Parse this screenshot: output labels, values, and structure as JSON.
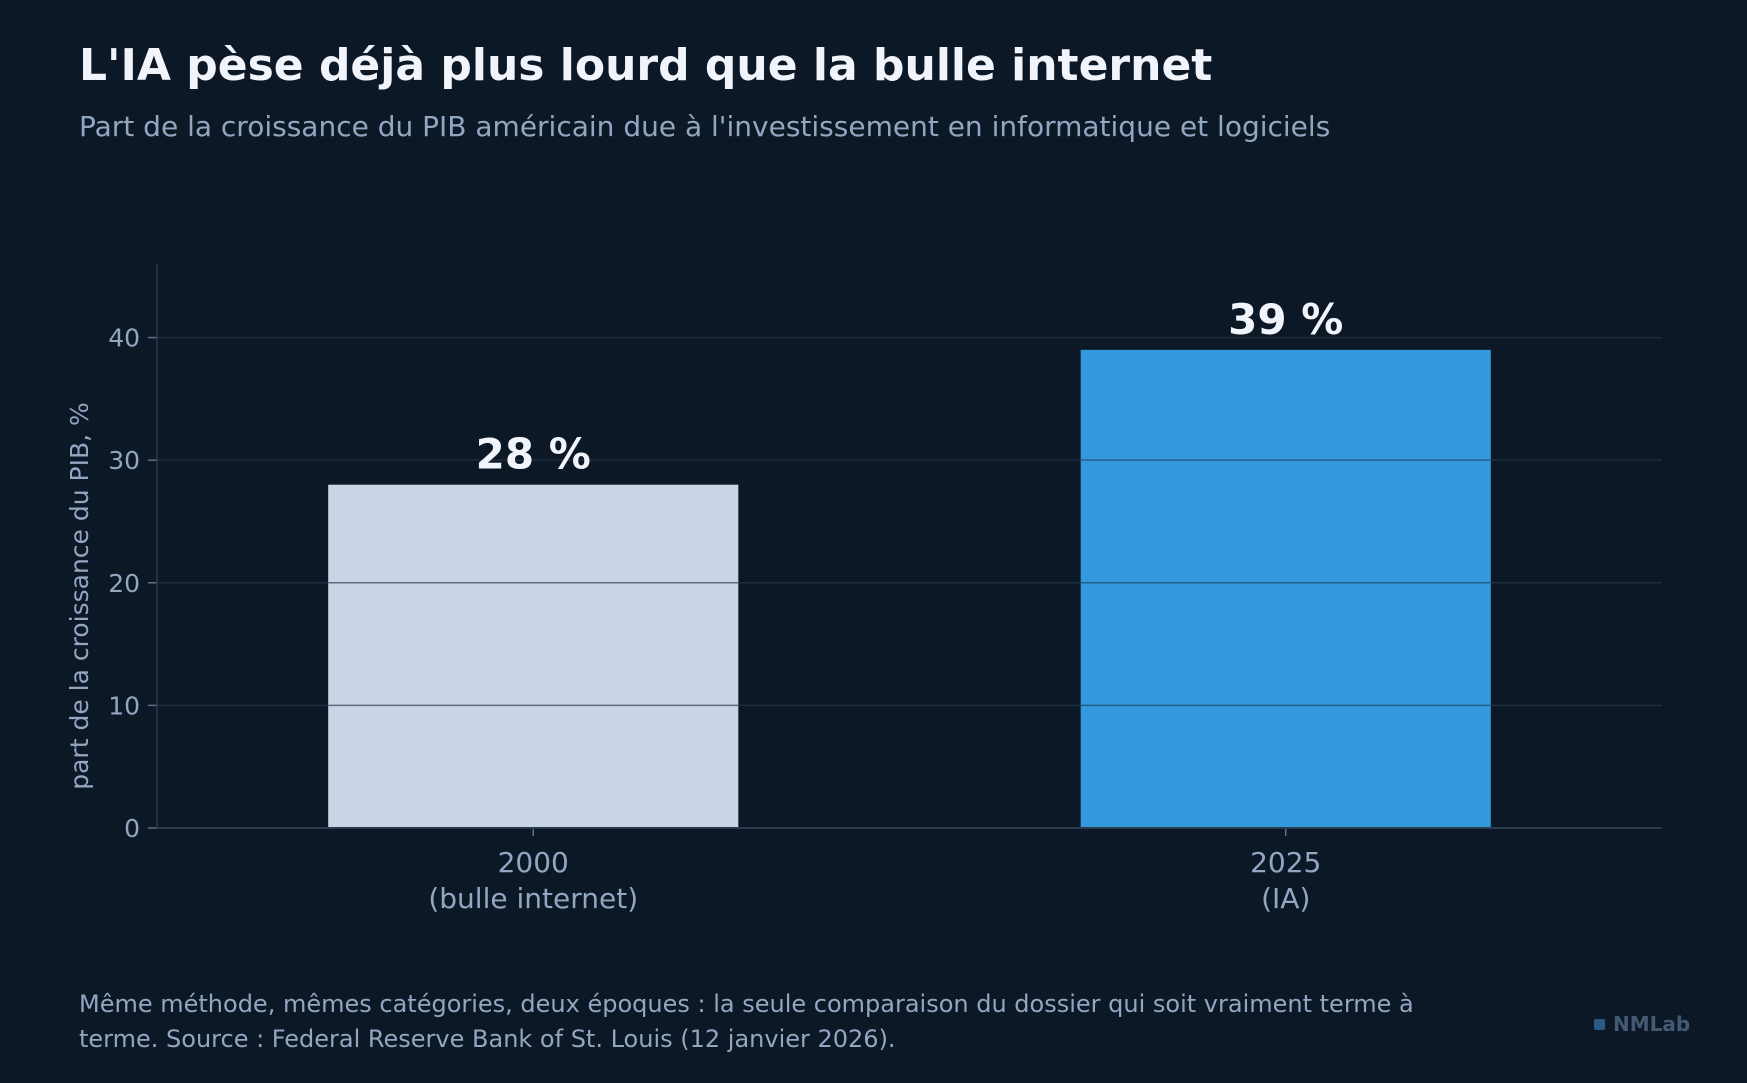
{
  "title": "L'IA pèse déjà plus lourd que la bulle internet",
  "subtitle": "Part de la croissance du PIB américain due à l'investissement en informatique et logiciels",
  "footnote": "Même méthode, mêmes catégories, deux époques : la seule comparaison du dossier qui soit vraiment terme à terme. Source : Federal Reserve Bank of St. Louis (12 janvier 2026).",
  "brand": "NMLab",
  "colors": {
    "background": "#0c1826",
    "bar_2000": "#c9d5e7",
    "bar_2025": "#3399dd",
    "grid": "#1c2b3d",
    "text_muted": "#93a6c1"
  },
  "chart_data": {
    "type": "bar",
    "categories": [
      [
        "2000",
        "(bulle internet)"
      ],
      [
        "2025",
        "(IA)"
      ]
    ],
    "values": [
      28,
      39
    ],
    "data_labels": [
      "28 %",
      "39 %"
    ],
    "bar_colors": [
      "#c9d5e7",
      "#3399dd"
    ],
    "title": "L'IA pèse déjà plus lourd que la bulle internet",
    "xlabel": "",
    "ylabel": "part de la croissance du PIB, %",
    "ylim": [
      0,
      46
    ],
    "yticks": [
      0,
      10,
      20,
      30,
      40
    ],
    "grid": true
  }
}
